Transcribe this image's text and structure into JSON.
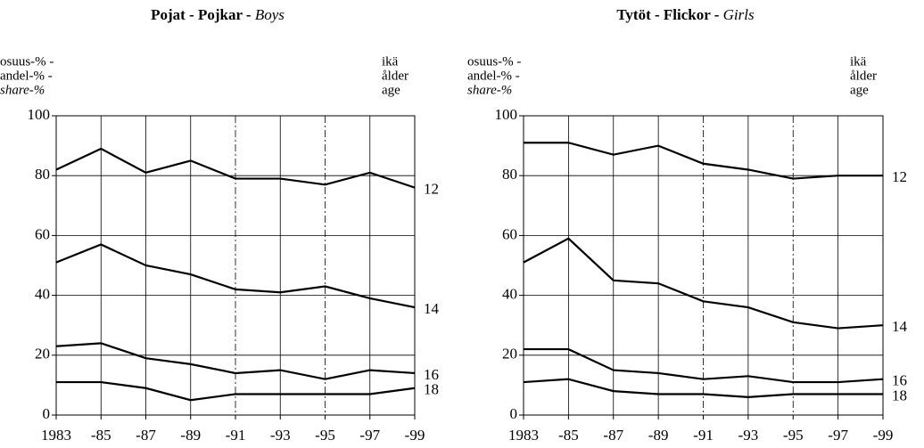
{
  "chart_data": [
    {
      "type": "line",
      "title": "Pojat - Pojkar -",
      "title_en": "Boys",
      "ylabel": [
        "osuus-% -",
        "andel-% -",
        "share-%"
      ],
      "y2label": [
        "ikä",
        "ålder",
        "age"
      ],
      "categories": [
        "1983",
        "-85",
        "-87",
        "-89",
        "-91",
        "-93",
        "-95",
        "-97",
        "-99"
      ],
      "ylim": [
        0,
        100
      ],
      "yticks": [
        0,
        20,
        40,
        60,
        80,
        100
      ],
      "grid": true,
      "color": "#000000",
      "series": [
        {
          "name": "12",
          "color": "#000000",
          "values": [
            82,
            89,
            81,
            85,
            79,
            79,
            77,
            81,
            76
          ]
        },
        {
          "name": "14",
          "color": "#000000",
          "values": [
            51,
            57,
            50,
            47,
            42,
            41,
            43,
            39,
            36
          ]
        },
        {
          "name": "16",
          "color": "#000000",
          "values": [
            23,
            24,
            19,
            17,
            14,
            15,
            12,
            15,
            14
          ]
        },
        {
          "name": "18",
          "color": "#000000",
          "values": [
            11,
            11,
            9,
            5,
            7,
            7,
            7,
            7,
            9
          ]
        }
      ]
    },
    {
      "type": "line",
      "title": "Tytöt - Flickor -",
      "title_en": "Girls",
      "ylabel": [
        "osuus-% -",
        "andel-% -",
        "share-%"
      ],
      "y2label": [
        "ikä",
        "ålder",
        "age"
      ],
      "categories": [
        "1983",
        "-85",
        "-87",
        "-89",
        "-91",
        "-93",
        "-95",
        "-97",
        "-99"
      ],
      "ylim": [
        0,
        100
      ],
      "yticks": [
        0,
        20,
        40,
        60,
        80,
        100
      ],
      "grid": true,
      "color": "#000000",
      "series": [
        {
          "name": "12",
          "color": "#000000",
          "values": [
            91,
            91,
            87,
            90,
            84,
            82,
            79,
            80,
            80
          ]
        },
        {
          "name": "14",
          "color": "#000000",
          "values": [
            51,
            59,
            45,
            44,
            38,
            36,
            31,
            29,
            30
          ]
        },
        {
          "name": "16",
          "color": "#000000",
          "values": [
            22,
            22,
            15,
            14,
            12,
            13,
            11,
            11,
            12
          ]
        },
        {
          "name": "18",
          "color": "#000000",
          "values": [
            11,
            12,
            8,
            7,
            7,
            6,
            7,
            7,
            7
          ]
        }
      ]
    }
  ]
}
